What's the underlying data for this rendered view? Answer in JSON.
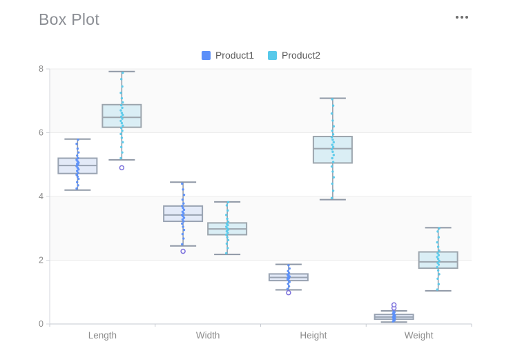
{
  "header": {
    "title": "Box Plot"
  },
  "menu": {
    "icon": "ellipsis-icon"
  },
  "legend": [
    {
      "label": "Product1",
      "color": "#5B8FF9"
    },
    {
      "label": "Product2",
      "color": "#57C9EA"
    }
  ],
  "style": {
    "band_fill": "#fafafa",
    "grid_color": "#ececec",
    "y_axis_line_color": "#d4d7dc",
    "x_axis_line_color": "#c6cad1",
    "tick_label_color": "#8c8c8c",
    "whisker_color": "#8f98a6",
    "outlier_stroke": "#7c71dc",
    "title_color": "#8a8d93",
    "legend_text_color": "#595959",
    "menu_dot_color": "#6d6d6d",
    "product1_box_fill": "#e3eaf8",
    "product1_box_stroke": "#99a3b2",
    "product2_box_fill": "#daeef5",
    "product2_box_stroke": "#9ca5ad"
  },
  "chart_data": {
    "type": "boxplot",
    "title": "Box Plot",
    "categories": [
      "Length",
      "Width",
      "Height",
      "Weight"
    ],
    "xlabel": "",
    "ylabel": "",
    "ylim": [
      0,
      8
    ],
    "yticks": [
      0,
      2,
      4,
      6,
      8
    ],
    "grid": "horizontal gridlines with alternating split-area bands (0-2 white, 2-4 gray, 4-6 white, 6-8 gray)",
    "legend_position": "top-center",
    "series": [
      {
        "name": "Product1",
        "point_color": "#5B8FF9",
        "box_fill": "#e3eaf8",
        "box_stroke": "#99a3b2",
        "boxes": [
          {
            "category": "Length",
            "low": 4.2,
            "q1": 4.72,
            "median": 4.97,
            "q3": 5.2,
            "high": 5.8,
            "outliers": [],
            "points": [
              4.25,
              4.35,
              4.45,
              4.55,
              4.62,
              4.68,
              4.74,
              4.8,
              4.85,
              4.9,
              4.95,
              5.0,
              5.02,
              5.06,
              5.1,
              5.15,
              5.2,
              5.28,
              5.38,
              5.5,
              5.65,
              5.78
            ]
          },
          {
            "category": "Width",
            "low": 2.45,
            "q1": 3.22,
            "median": 3.42,
            "q3": 3.7,
            "high": 4.45,
            "outliers": [
              2.28
            ],
            "points": [
              2.5,
              2.68,
              2.82,
              2.95,
              3.05,
              3.15,
              3.22,
              3.28,
              3.33,
              3.38,
              3.42,
              3.47,
              3.52,
              3.58,
              3.64,
              3.7,
              3.78,
              3.9,
              4.05,
              4.22,
              4.4
            ]
          },
          {
            "category": "Height",
            "low": 1.07,
            "q1": 1.36,
            "median": 1.46,
            "q3": 1.57,
            "high": 1.87,
            "outliers": [
              0.98
            ],
            "points": [
              1.1,
              1.18,
              1.26,
              1.32,
              1.37,
              1.41,
              1.44,
              1.46,
              1.49,
              1.52,
              1.55,
              1.6,
              1.66,
              1.74,
              1.84
            ]
          },
          {
            "category": "Weight",
            "low": 0.06,
            "q1": 0.15,
            "median": 0.22,
            "q3": 0.3,
            "high": 0.41,
            "outliers": [
              0.5,
              0.6
            ],
            "points": [
              0.08,
              0.11,
              0.14,
              0.17,
              0.19,
              0.21,
              0.23,
              0.25,
              0.27,
              0.3,
              0.33,
              0.37,
              0.4
            ]
          }
        ]
      },
      {
        "name": "Product2",
        "point_color": "#57C9EA",
        "box_fill": "#daeef5",
        "box_stroke": "#9ca5ad",
        "boxes": [
          {
            "category": "Length",
            "low": 5.15,
            "q1": 6.17,
            "median": 6.48,
            "q3": 6.88,
            "high": 7.92,
            "outliers": [
              4.9
            ],
            "points": [
              5.2,
              5.38,
              5.55,
              5.7,
              5.84,
              5.96,
              6.06,
              6.15,
              6.22,
              6.3,
              6.37,
              6.44,
              6.5,
              6.56,
              6.62,
              6.7,
              6.78,
              6.86,
              6.95,
              7.08,
              7.25,
              7.45,
              7.68,
              7.88
            ]
          },
          {
            "category": "Width",
            "low": 2.18,
            "q1": 2.8,
            "median": 2.98,
            "q3": 3.17,
            "high": 3.83,
            "outliers": [],
            "points": [
              2.22,
              2.38,
              2.52,
              2.63,
              2.72,
              2.8,
              2.86,
              2.91,
              2.96,
              3.0,
              3.05,
              3.1,
              3.15,
              3.21,
              3.3,
              3.42,
              3.56,
              3.72,
              3.82
            ]
          },
          {
            "category": "Height",
            "low": 3.9,
            "q1": 5.05,
            "median": 5.5,
            "q3": 5.88,
            "high": 7.08,
            "outliers": [],
            "points": [
              3.95,
              4.18,
              4.4,
              4.6,
              4.78,
              4.94,
              5.08,
              5.2,
              5.3,
              5.4,
              5.48,
              5.55,
              5.62,
              5.7,
              5.78,
              5.86,
              5.95,
              6.06,
              6.2,
              6.38,
              6.6,
              6.85,
              7.05
            ]
          },
          {
            "category": "Weight",
            "low": 1.04,
            "q1": 1.75,
            "median": 1.95,
            "q3": 2.26,
            "high": 3.02,
            "outliers": [],
            "points": [
              1.08,
              1.25,
              1.42,
              1.56,
              1.68,
              1.78,
              1.86,
              1.92,
              1.98,
              2.04,
              2.1,
              2.16,
              2.22,
              2.3,
              2.42,
              2.56,
              2.72,
              2.9,
              3.0
            ]
          }
        ]
      }
    ]
  }
}
